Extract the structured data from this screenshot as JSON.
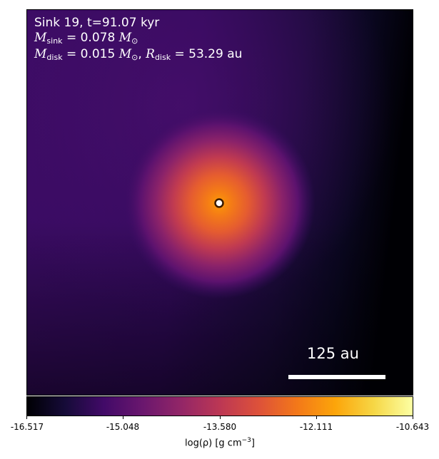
{
  "overlay": {
    "title": "Sink 19, t=91.07 kyr",
    "sink_mass_symbol": "M",
    "sink_mass_sub": "sink",
    "sink_mass_value": " = 0.078 ",
    "disk_mass_symbol": "M",
    "disk_mass_sub": "disk",
    "disk_mass_value": " = 0.015 ",
    "disk_radius_symbol": "R",
    "disk_radius_sub": "disk",
    "disk_radius_value": " = 53.29 au",
    "solar_unit": "M",
    "solar_sub": "⊙",
    "separator": ", "
  },
  "scale_bar": {
    "label": "125 au"
  },
  "colorbar": {
    "ticks": [
      "-16.517",
      "-15.048",
      "-13.580",
      "-12.111",
      "-10.643"
    ],
    "label_prefix": "log(ρ) [g cm",
    "label_exp": "−3",
    "label_suffix": "]",
    "colormap": "inferno"
  },
  "colors": {
    "text": "#ffffff",
    "sink_marker_fill": "#ffffff",
    "sink_marker_edge": "#3a1a00"
  }
}
